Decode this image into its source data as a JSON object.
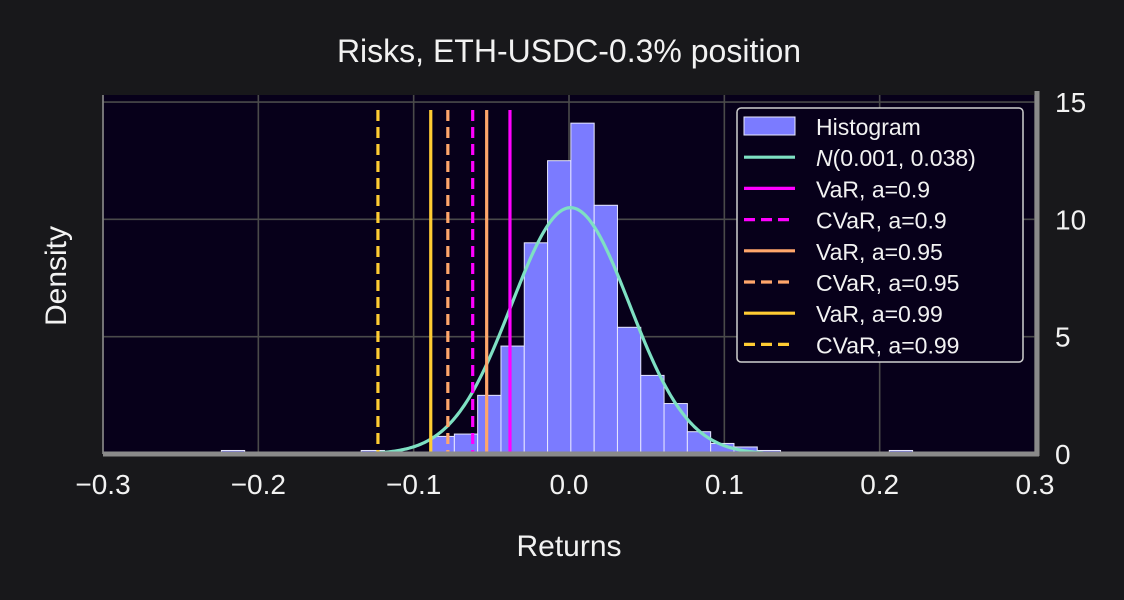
{
  "chart_data": {
    "type": "bar",
    "title": "Risks, ETH-USDC-0.3% position",
    "xlabel": "Returns",
    "ylabel": "Density",
    "xlim": [
      -0.3,
      0.3
    ],
    "ylim": [
      0,
      15.3
    ],
    "xticks": [
      -0.3,
      -0.2,
      -0.1,
      0.0,
      0.1,
      0.2,
      0.3
    ],
    "xtick_labels": [
      "−0.3",
      "−0.2",
      "−0.1",
      "0.0",
      "0.1",
      "0.2",
      "0.3"
    ],
    "yticks": [
      0,
      5,
      10,
      15
    ],
    "ytick_labels": [
      "0",
      "5",
      "10",
      "15"
    ],
    "y_axis_side": "right",
    "grid": true,
    "legend_position": "top-right",
    "histogram": {
      "name": "Histogram",
      "color": "#7b7bff",
      "edge_color": "#e8e8ff",
      "bins": [
        {
          "x0": -0.2238,
          "x1": -0.2088,
          "value": 0.15
        },
        {
          "x0": -0.1338,
          "x1": -0.1188,
          "value": 0.15
        },
        {
          "x0": -0.0888,
          "x1": -0.0738,
          "value": 0.75
        },
        {
          "x0": -0.0738,
          "x1": -0.0588,
          "value": 0.85
        },
        {
          "x0": -0.0588,
          "x1": -0.0438,
          "value": 2.5
        },
        {
          "x0": -0.0438,
          "x1": -0.0288,
          "value": 4.6
        },
        {
          "x0": -0.0288,
          "x1": -0.0138,
          "value": 9.0
        },
        {
          "x0": -0.0138,
          "x1": 0.0012,
          "value": 12.5
        },
        {
          "x0": 0.0012,
          "x1": 0.0162,
          "value": 14.1
        },
        {
          "x0": 0.0162,
          "x1": 0.0312,
          "value": 10.6
        },
        {
          "x0": 0.0312,
          "x1": 0.0462,
          "value": 5.4
        },
        {
          "x0": 0.0462,
          "x1": 0.0612,
          "value": 3.35
        },
        {
          "x0": 0.0612,
          "x1": 0.0762,
          "value": 2.15
        },
        {
          "x0": 0.0762,
          "x1": 0.0912,
          "value": 0.95
        },
        {
          "x0": 0.0912,
          "x1": 0.1062,
          "value": 0.45
        },
        {
          "x0": 0.1062,
          "x1": 0.1212,
          "value": 0.3
        },
        {
          "x0": 0.1212,
          "x1": 0.1362,
          "value": 0.15
        },
        {
          "x0": 0.2062,
          "x1": 0.2212,
          "value": 0.15
        }
      ]
    },
    "normal_fit": {
      "label_prefix": "N",
      "label_params": "(0.001, 0.038)",
      "mean": 0.001,
      "std": 0.038,
      "color": "#7ee0c3"
    },
    "risk_lines": [
      {
        "name": "VaR, a=0.9",
        "x": -0.038,
        "color": "#ff00ff",
        "dashed": false
      },
      {
        "name": "CVaR, a=0.9",
        "x": -0.062,
        "color": "#ff00ff",
        "dashed": true
      },
      {
        "name": "VaR, a=0.95",
        "x": -0.053,
        "color": "#ffa66b",
        "dashed": false
      },
      {
        "name": "CVaR, a=0.95",
        "x": -0.078,
        "color": "#ffa66b",
        "dashed": true
      },
      {
        "name": "VaR, a=0.99",
        "x": -0.089,
        "color": "#ffcc33",
        "dashed": false
      },
      {
        "name": "CVaR, a=0.99",
        "x": -0.123,
        "color": "#ffcc33",
        "dashed": true
      }
    ],
    "colors": {
      "page_background": "#18181b",
      "plot_background": "#07001a",
      "grid": "#4a4a4a",
      "axis": "#8a8a8a",
      "text": "#f2f2f2"
    }
  }
}
